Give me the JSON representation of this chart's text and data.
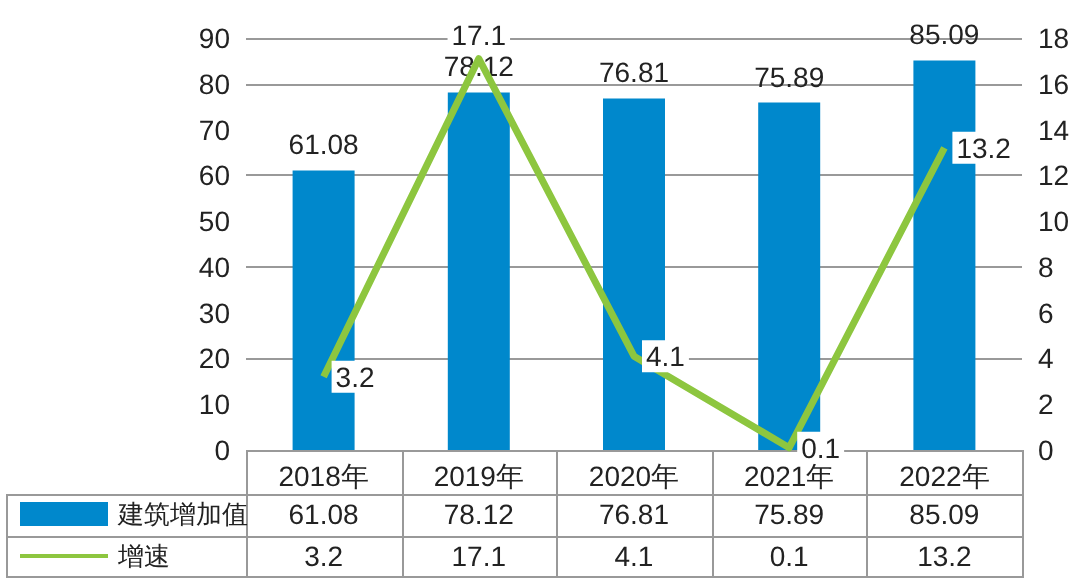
{
  "chart_data": {
    "type": "bar",
    "categories": [
      "2018年",
      "2019年",
      "2020年",
      "2021年",
      "2022年"
    ],
    "series": [
      {
        "name": "建筑增加值",
        "color": "#0088cc",
        "values": [
          61.08,
          78.12,
          76.81,
          75.89,
          85.09
        ],
        "value_labels": [
          "61.08",
          "78.12",
          "76.81",
          "75.89",
          "85.09"
        ]
      },
      {
        "name": "增速",
        "type": "line",
        "axis": "y2",
        "color": "#8dc63f",
        "values": [
          3.2,
          17.1,
          4.1,
          0.1,
          13.2
        ],
        "value_labels": [
          "3.2",
          "17.1",
          "4.1",
          "0.1",
          "13.2"
        ]
      }
    ],
    "ylim": [
      0,
      90
    ],
    "yticks": [
      0,
      10,
      20,
      30,
      40,
      50,
      60,
      70,
      80,
      90
    ],
    "y2lim": [
      0,
      18
    ],
    "y2ticks": [
      0,
      2,
      4,
      6,
      8,
      10,
      12,
      14,
      16,
      18
    ],
    "grid": "y",
    "legend": "bottom left",
    "marker": "none"
  }
}
